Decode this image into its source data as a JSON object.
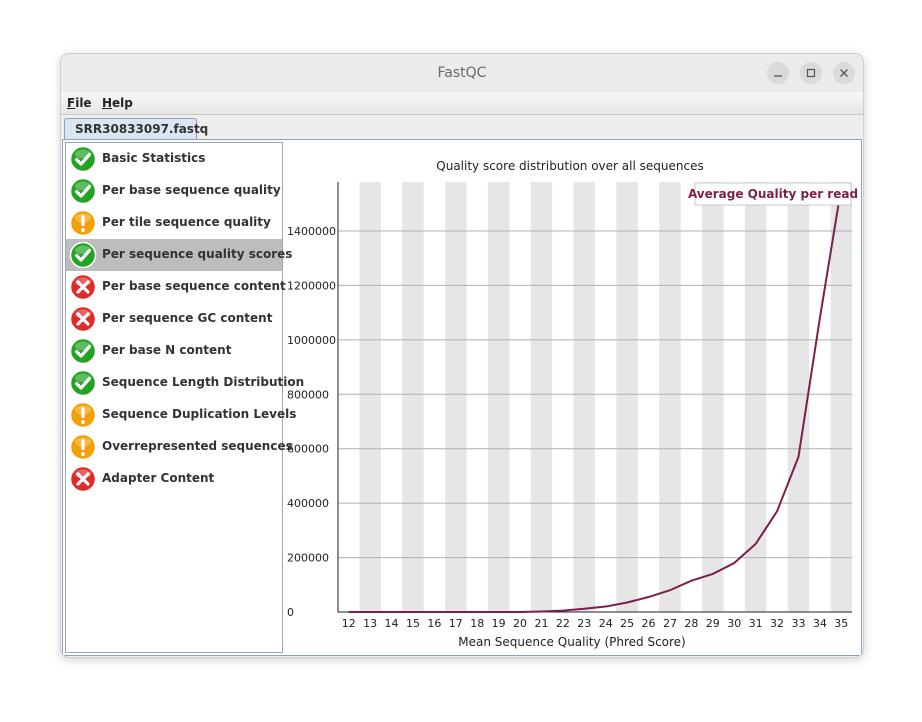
{
  "window": {
    "title": "FastQC"
  },
  "menubar": {
    "file": {
      "mnemonic": "F",
      "rest": "ile"
    },
    "help": {
      "mnemonic": "H",
      "rest": "elp"
    }
  },
  "tab": {
    "label": "SRR30833097.fastq"
  },
  "modules": [
    {
      "label": "Basic Statistics",
      "status": "pass",
      "icon": "check-icon",
      "selected": false
    },
    {
      "label": "Per base sequence quality",
      "status": "pass",
      "icon": "check-icon",
      "selected": false
    },
    {
      "label": "Per tile sequence quality",
      "status": "warn",
      "icon": "exclamation-icon",
      "selected": false
    },
    {
      "label": "Per sequence quality scores",
      "status": "pass",
      "icon": "check-icon",
      "selected": true
    },
    {
      "label": "Per base sequence content",
      "status": "fail",
      "icon": "cross-icon",
      "selected": false
    },
    {
      "label": "Per sequence GC content",
      "status": "fail",
      "icon": "cross-icon",
      "selected": false
    },
    {
      "label": "Per base N content",
      "status": "pass",
      "icon": "check-icon",
      "selected": false
    },
    {
      "label": "Sequence Length Distribution",
      "status": "pass",
      "icon": "check-icon",
      "selected": false
    },
    {
      "label": "Sequence Duplication Levels",
      "status": "warn",
      "icon": "exclamation-icon",
      "selected": false
    },
    {
      "label": "Overrepresented sequences",
      "status": "warn",
      "icon": "exclamation-icon",
      "selected": false
    },
    {
      "label": "Adapter Content",
      "status": "fail",
      "icon": "cross-icon",
      "selected": false
    }
  ],
  "colors": {
    "pass": "#22a322",
    "warn": "#f5a000",
    "fail": "#e02a2a",
    "line": "#7b1f4b",
    "band": "#e6e6e6"
  },
  "chart_data": {
    "type": "line",
    "title": "Quality score distribution over all sequences",
    "xlabel": "Mean Sequence Quality (Phred Score)",
    "ylabel": "",
    "x": [
      12,
      13,
      14,
      15,
      16,
      17,
      18,
      19,
      20,
      21,
      22,
      23,
      24,
      25,
      26,
      27,
      28,
      29,
      30,
      31,
      32,
      33,
      34,
      35
    ],
    "yticks": [
      0,
      200000,
      400000,
      600000,
      800000,
      1000000,
      1200000,
      1400000
    ],
    "ylim": [
      0,
      1580000
    ],
    "grid": true,
    "legend_position": "top-right",
    "series": [
      {
        "name": "Average Quality per read",
        "values": [
          0,
          0,
          0,
          0,
          0,
          0,
          0,
          0,
          0,
          2000,
          5000,
          12000,
          20000,
          35000,
          55000,
          80000,
          115000,
          140000,
          180000,
          250000,
          370000,
          570000,
          1080000,
          1560000
        ]
      }
    ]
  }
}
